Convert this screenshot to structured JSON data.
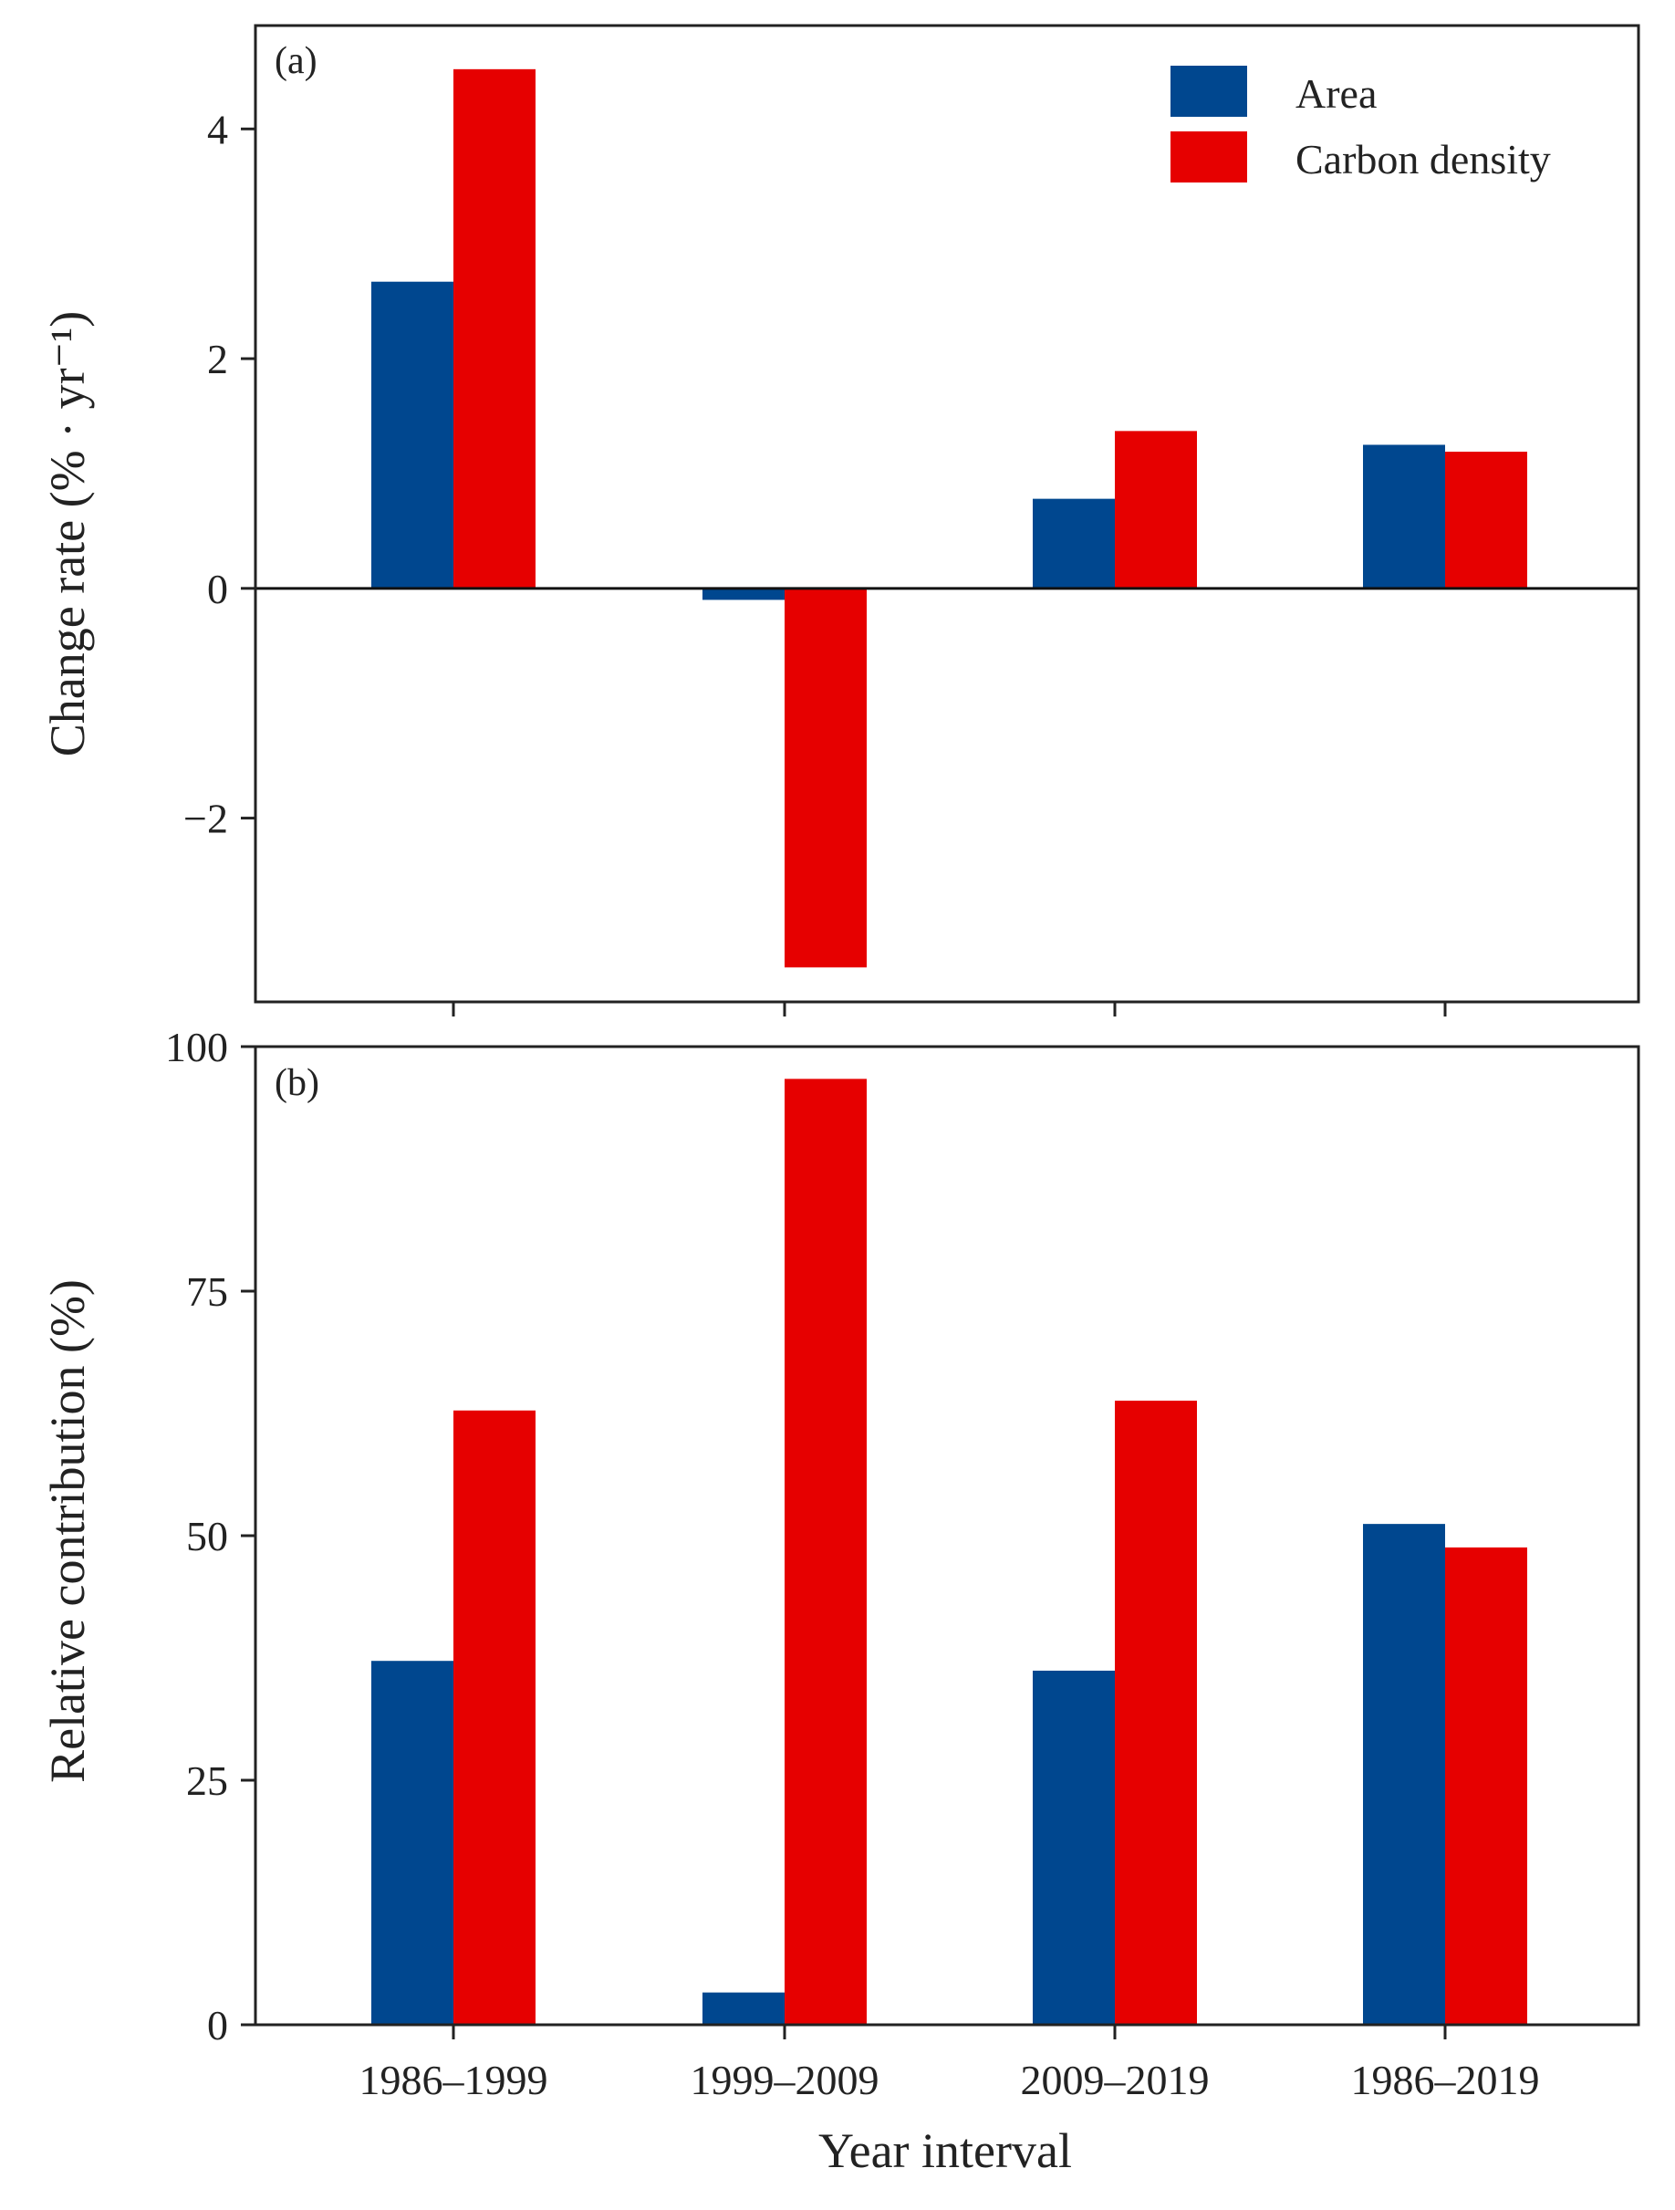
{
  "chart_data": [
    {
      "type": "bar",
      "panel_label": "(a)",
      "categories": [
        "1986–1999",
        "1999–2009",
        "2009–2019",
        "1986–2019"
      ],
      "series": [
        {
          "name": "Area",
          "color": "#00478f",
          "values": [
            2.67,
            -0.1,
            0.78,
            1.25
          ]
        },
        {
          "name": "Carbon density",
          "color": "#e60000",
          "values": [
            4.52,
            -3.3,
            1.37,
            1.19
          ]
        }
      ],
      "ylabel": "Change rate (% · yr⁻¹)",
      "ylim": [
        -3.6,
        4.9
      ],
      "yticks": [
        4,
        2,
        0,
        -2
      ],
      "ytick_labels": [
        "4",
        "2",
        "0",
        "−2"
      ],
      "zero_line": true,
      "legend": {
        "position": "top-right",
        "entries": [
          "Area",
          "Carbon density"
        ]
      }
    },
    {
      "type": "bar",
      "panel_label": "(b)",
      "categories": [
        "1986–1999",
        "1999–2009",
        "2009–2019",
        "1986–2019"
      ],
      "series": [
        {
          "name": "Area",
          "color": "#00478f",
          "values": [
            37.2,
            3.3,
            36.2,
            51.2
          ]
        },
        {
          "name": "Carbon density",
          "color": "#e60000",
          "values": [
            62.8,
            96.7,
            63.8,
            48.8
          ]
        }
      ],
      "xlabel": "Year interval",
      "ylabel": "Relative contribution (%)",
      "ylim": [
        0,
        100
      ],
      "yticks": [
        100,
        75,
        50,
        25,
        0
      ],
      "ytick_labels": [
        "100",
        "75",
        "50",
        "25",
        "0"
      ]
    }
  ]
}
